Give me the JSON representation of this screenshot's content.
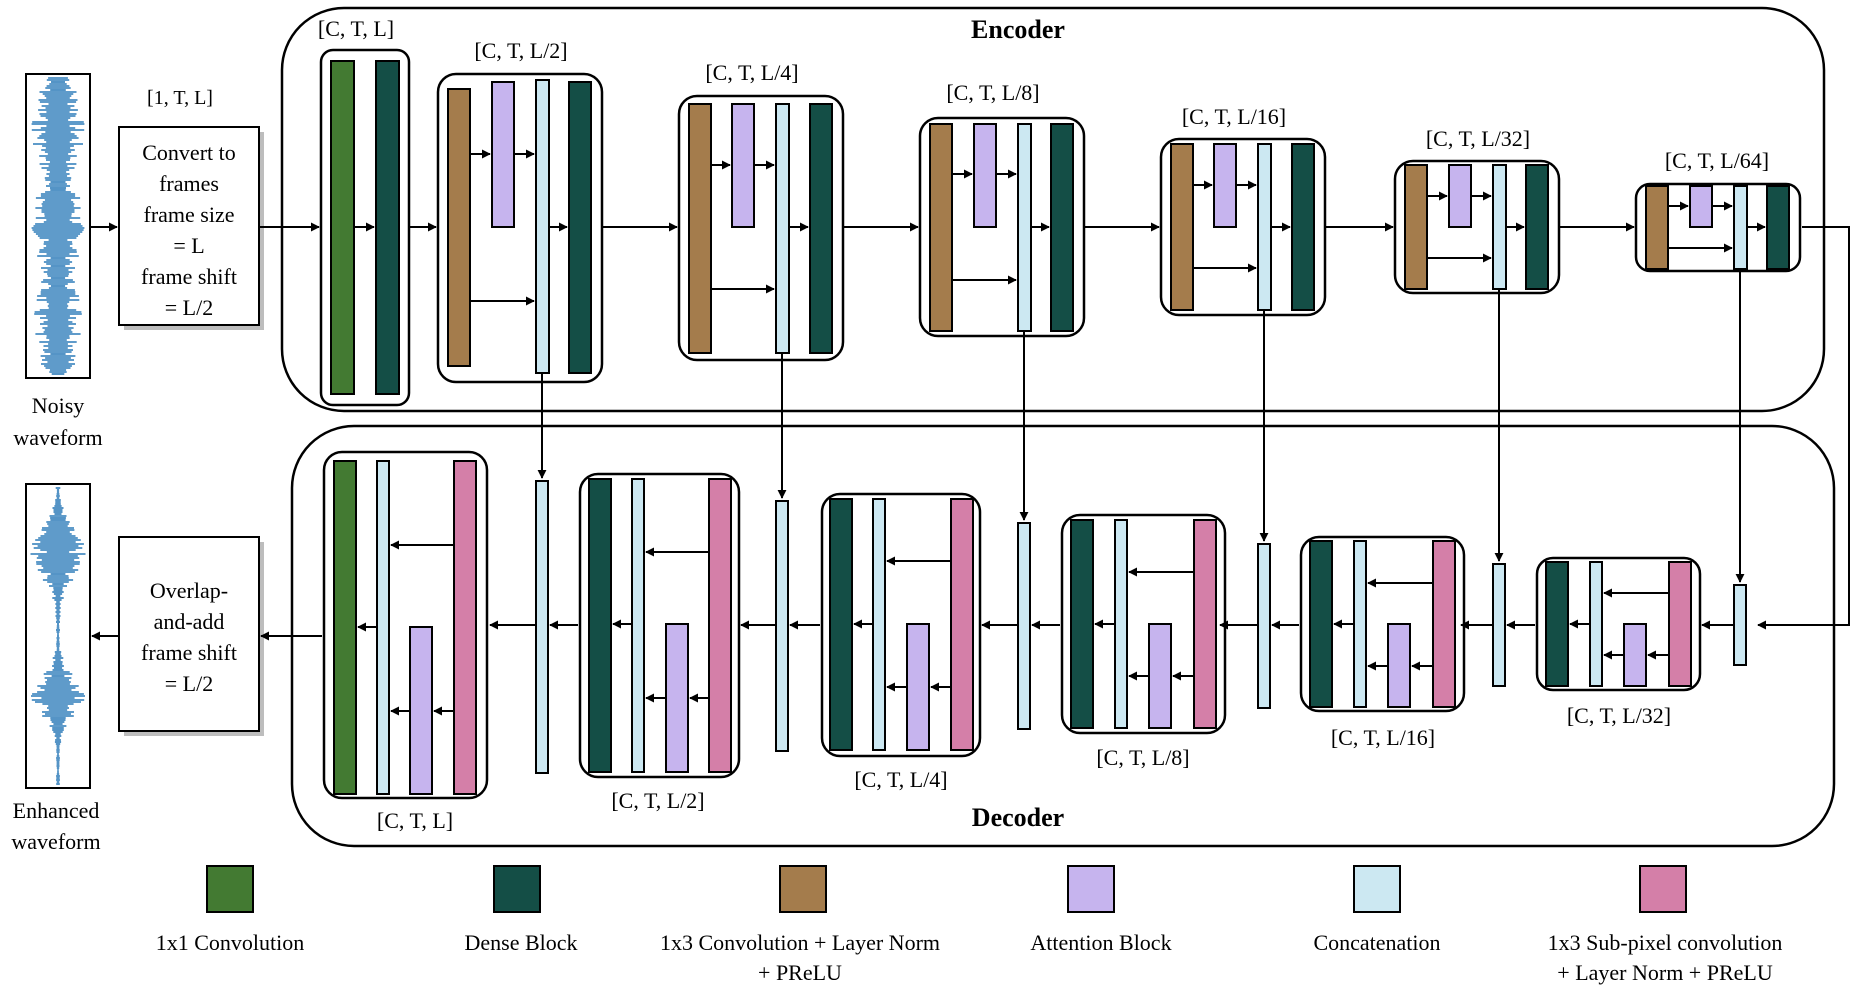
{
  "encoder_title": "Encoder",
  "decoder_title": "Decoder",
  "input": {
    "shape_label": "[1, T, L]",
    "convert_text": [
      "Convert to",
      "frames",
      "frame size",
      "= L",
      "frame shift",
      "= L/2"
    ],
    "waveform_caption": [
      "Noisy",
      "waveform"
    ],
    "waveform_icon": "noisy-waveform-icon"
  },
  "output": {
    "overlap_text": [
      "Overlap-",
      "and-add",
      "frame shift",
      "= L/2"
    ],
    "waveform_caption": [
      "Enhanced",
      "waveform"
    ],
    "waveform_icon": "enhanced-waveform-icon"
  },
  "encoder_shapes": [
    "[C, T, L]",
    "[C, T, L/2]",
    "[C, T, L/4]",
    "[C, T, L/8]",
    "[C, T, L/16]",
    "[C, T, L/32]",
    "[C, T, L/64]"
  ],
  "decoder_shapes": [
    "[C, T, L]",
    "[C, T, L/2]",
    "[C, T, L/4]",
    "[C, T, L/8]",
    "[C, T, L/16]",
    "[C, T, L/32]"
  ],
  "legend": [
    {
      "name": "conv1x1",
      "lines": [
        "1x1 Convolution"
      ],
      "color": "#437a32"
    },
    {
      "name": "dense",
      "lines": [
        "Dense Block"
      ],
      "color": "#144e46"
    },
    {
      "name": "conv1x3",
      "lines": [
        "1x3 Convolution + Layer Norm",
        "+ PReLU"
      ],
      "color": "#a47c4c"
    },
    {
      "name": "attention",
      "lines": [
        "Attention Block"
      ],
      "color": "#c6b4ee"
    },
    {
      "name": "concat",
      "lines": [
        "Concatenation"
      ],
      "color": "#cce8f2"
    },
    {
      "name": "subpixel",
      "lines": [
        "1x3 Sub-pixel convolution",
        "+ Layer Norm  + PReLU"
      ],
      "color": "#d47fa8"
    }
  ],
  "colors": {
    "conv1x1": "#437a32",
    "dense": "#144e46",
    "conv1x3": "#a47c4c",
    "attention": "#c6b4ee",
    "concat": "#cce8f2",
    "subpixel": "#d47fa8",
    "wave": "#2a7ab8"
  }
}
